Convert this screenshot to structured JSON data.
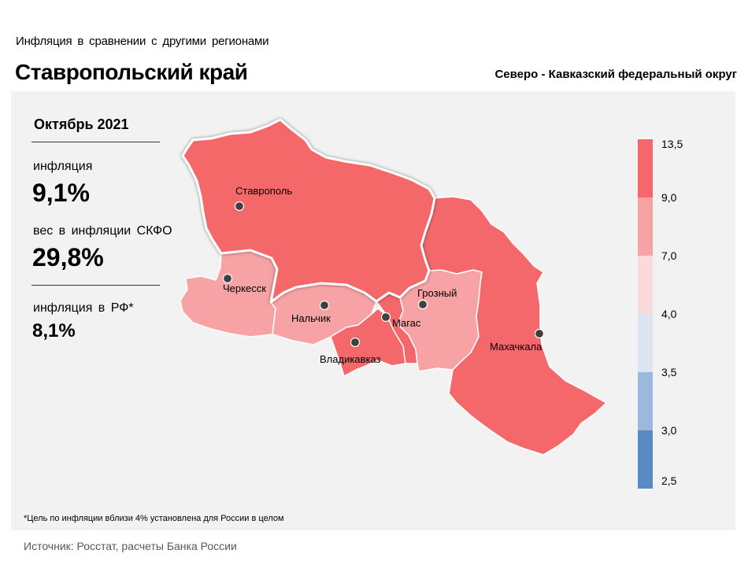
{
  "header": {
    "subtitle": "Инфляция  в сравнении  с другими  регионами",
    "region": "Ставропольский край",
    "district": "Северо - Кавказский федеральный округ"
  },
  "stats": {
    "period": "Октябрь 2021",
    "inflation_label": "инфляция",
    "inflation_value": "9,1%",
    "weight_label": "вес в инфляции  СКФО",
    "weight_value": "29,8%",
    "rf_label": "инфляция  в РФ*",
    "rf_value": "8,1%"
  },
  "cities": {
    "stavropol": "Ставрополь",
    "cherkessk": "Черкесск",
    "nalchik": "Нальчик",
    "vladikavkaz": "Владикавказ",
    "magas": "Магас",
    "grozny": "Грозный",
    "makhachkala": "Махачкала"
  },
  "legend": {
    "ticks": [
      "13,5",
      "9,0",
      "7,0",
      "4,0",
      "3,5",
      "3,0",
      "2,5"
    ],
    "colors": [
      "#f4686b",
      "#f7a3a5",
      "#fadadc",
      "#dce6f2",
      "#9bb9dc",
      "#5a8ac6"
    ]
  },
  "map_colors": {
    "stavropol": "#f4686b",
    "dagestan": "#f4686b",
    "north_ossetia": "#f4686b",
    "ingushetia": "#f4686b",
    "karachay_cherkessia": "#f7a3a5",
    "kabardino_balkaria": "#f7a3a5",
    "chechnya": "#f7a3a5"
  },
  "footnote": "*Цель по инфляции вблизи 4% установлена для России в целом",
  "source": "Источник: Росстат, расчеты Банка России"
}
